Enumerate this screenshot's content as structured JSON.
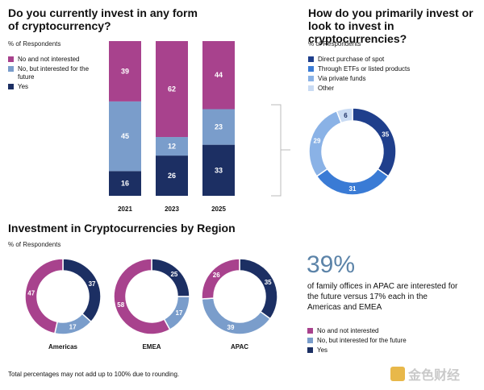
{
  "colors": {
    "no": "#a8428d",
    "future": "#7a9dcb",
    "yes": "#1c2f63",
    "direct": "#1f3f8c",
    "etf": "#3a7bd5",
    "private": "#8ab2e6",
    "other": "#c9dbf3"
  },
  "chart1": {
    "title": "Do you currently invest in any form of cryptocurrency?",
    "subtitle": "% of Respondents",
    "legend": [
      "No and not interested",
      "No, but interested for the future",
      "Yes"
    ]
  },
  "chart2": {
    "title": "How do you primarily invest or look to invest in cryptocurrencies?",
    "subtitle": "% of Respondents",
    "legend": [
      "Direct purchase of spot",
      "Through ETFs or listed products",
      "Via private funds",
      "Other"
    ]
  },
  "chart3": {
    "title": "Investment in Cryptocurrencies by Region",
    "subtitle": "% of Respondents",
    "legend": [
      "No and not interested",
      "No, but interested for the future",
      "Yes"
    ]
  },
  "stat": {
    "value": "39%",
    "text": "of family offices in APAC are interested for the future versus 17% each in the Americas and EMEA"
  },
  "footnote": "Total percentages may not add up to 100% due to rounding.",
  "watermark": "金色财经",
  "chart_data": [
    {
      "type": "bar",
      "stacked": true,
      "categories": [
        "2021",
        "2023",
        "2025"
      ],
      "series": [
        {
          "name": "Yes",
          "values": [
            16,
            26,
            33
          ]
        },
        {
          "name": "No, but interested for the future",
          "values": [
            45,
            12,
            23
          ]
        },
        {
          "name": "No and not interested",
          "values": [
            39,
            62,
            44
          ]
        }
      ]
    },
    {
      "type": "pie",
      "donut": true,
      "labels": [
        "Direct purchase of spot",
        "Through ETFs or listed products",
        "Via private funds",
        "Other"
      ],
      "values": [
        35,
        31,
        29,
        6
      ]
    },
    {
      "type": "pie",
      "donut": true,
      "regions": [
        {
          "name": "Americas",
          "values": [
            37,
            17,
            47
          ]
        },
        {
          "name": "EMEA",
          "values": [
            25,
            17,
            58
          ]
        },
        {
          "name": "APAC",
          "values": [
            35,
            39,
            26
          ]
        }
      ],
      "labels": [
        "Yes",
        "No, but interested for the future",
        "No and not interested"
      ]
    }
  ]
}
